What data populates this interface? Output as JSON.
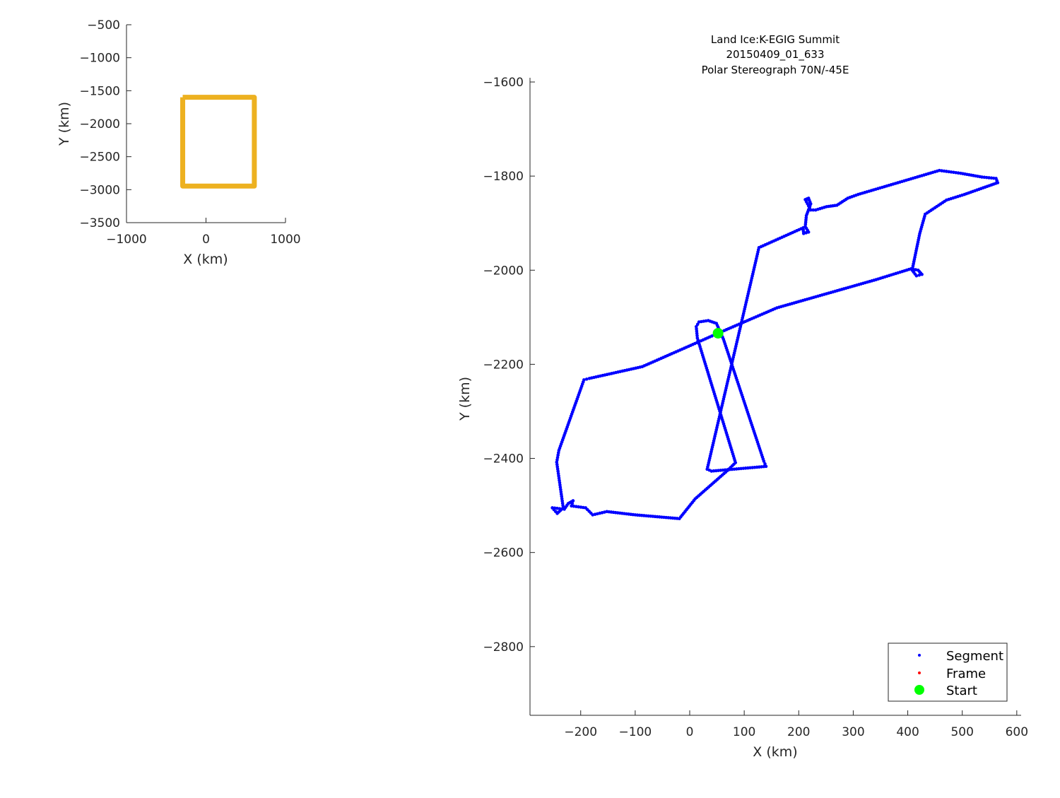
{
  "chart_data": [
    {
      "type": "line",
      "title": "",
      "xlabel": "X (km)",
      "ylabel": "Y (km)",
      "xlim": [
        -1000,
        1000
      ],
      "ylim": [
        -3500,
        -500
      ],
      "xticks": [
        -1000,
        0,
        1000
      ],
      "yticks": [
        -500,
        -1000,
        -1500,
        -2000,
        -2500,
        -3000,
        -3500
      ],
      "grid": false,
      "series": [
        {
          "color": "#EDB120",
          "x": [
            -293,
            608,
            608,
            -293,
            -293
          ],
          "y": [
            -1600,
            -1600,
            -2946,
            -2946,
            -1600
          ]
        }
      ]
    },
    {
      "type": "scatter",
      "title": [
        "Land Ice:K-EGIG Summit",
        "20150409_01_633",
        "Polar Stereograph 70N/-45E"
      ],
      "xlabel": "X (km)",
      "ylabel": "Y (km)",
      "xlim": [
        -293,
        608
      ],
      "ylim": [
        -2946,
        -1600
      ],
      "xticks": [
        -200,
        -100,
        0,
        100,
        200,
        300,
        400,
        500,
        600
      ],
      "yticks": [
        -1600,
        -1800,
        -2000,
        -2200,
        -2400,
        -2600,
        -2800
      ],
      "grid": false,
      "legend_position": "bottom-right",
      "legend": [
        "Segment",
        "Frame",
        "Start"
      ],
      "colors": {
        "segment": "#0000FF",
        "frame": "#FF0000",
        "start": "#00FF00"
      },
      "segment_track": {
        "x": [
          52,
          160,
          342,
          406,
          419,
          426,
          416,
          408,
          422,
          432,
          471,
          504,
          565,
          562,
          536,
          497,
          458,
          309,
          290,
          270,
          251,
          231,
          222,
          212,
          218,
          222,
          214,
          212,
          218,
          209,
          208,
          127,
          32,
          40,
          140,
          136,
          62,
          49,
          34,
          17,
          12,
          14,
          84,
          69,
          10,
          -19,
          -100,
          -152,
          -178,
          -191,
          -217,
          -214,
          -223,
          -230,
          -252,
          -243,
          -232,
          -244,
          -240,
          -194,
          -184,
          -87,
          21,
          52
        ],
        "y": [
          -2134,
          -2080,
          -2020,
          -1997,
          -2000,
          -2009,
          -2012,
          -2000,
          -1922,
          -1881,
          -1851,
          -1839,
          -1814,
          -1805,
          -1802,
          -1794,
          -1788,
          -1839,
          -1847,
          -1862,
          -1865,
          -1872,
          -1872,
          -1850,
          -1847,
          -1859,
          -1884,
          -1907,
          -1919,
          -1922,
          -1910,
          -1952,
          -2423,
          -2427,
          -2417,
          -2406,
          -2147,
          -2113,
          -2107,
          -2110,
          -2120,
          -2144,
          -2409,
          -2426,
          -2486,
          -2528,
          -2520,
          -2513,
          -2520,
          -2505,
          -2501,
          -2490,
          -2496,
          -2508,
          -2505,
          -2517,
          -2505,
          -2408,
          -2383,
          -2233,
          -2230,
          -2205,
          -2150,
          -2134
        ]
      },
      "start": {
        "x": 52,
        "y": -2134
      }
    }
  ]
}
